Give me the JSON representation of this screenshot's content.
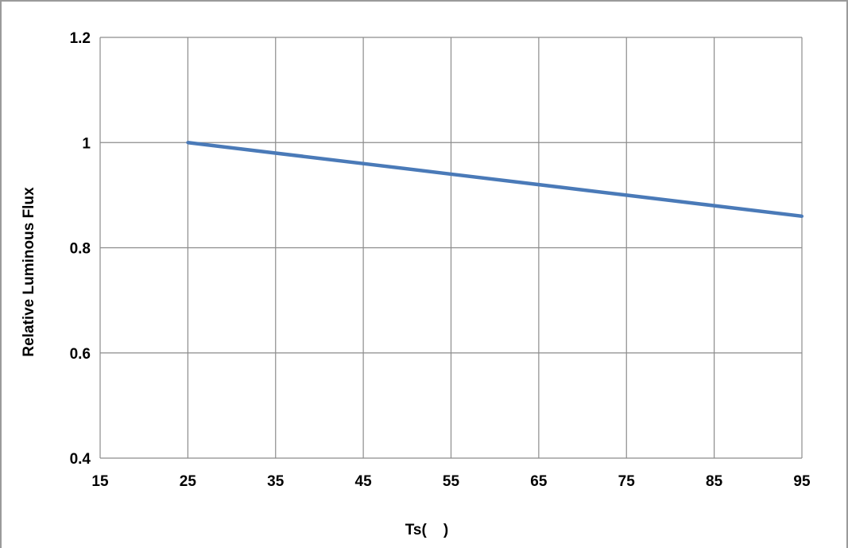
{
  "chart_data": {
    "type": "line",
    "title": "",
    "xlabel": "Ts(    )",
    "ylabel": "Relative Luminous Flux",
    "xlim": [
      15,
      95
    ],
    "ylim": [
      0.4,
      1.2
    ],
    "x_ticks": [
      15,
      25,
      35,
      45,
      55,
      65,
      75,
      85,
      95
    ],
    "y_ticks": [
      "0.4",
      "0.6",
      "0.8",
      "1",
      "1.2"
    ],
    "grid": true,
    "legend": "none",
    "series": [
      {
        "x": [
          25,
          35,
          45,
          55,
          65,
          75,
          85,
          95
        ],
        "y": [
          1.0,
          0.98,
          0.96,
          0.94,
          0.92,
          0.9,
          0.88,
          0.86
        ],
        "color": "#4a7ab8"
      }
    ]
  },
  "colors": {
    "grid": "#8c8c8c",
    "frame": "#9a9a9a",
    "line": "#4a7ab8"
  }
}
